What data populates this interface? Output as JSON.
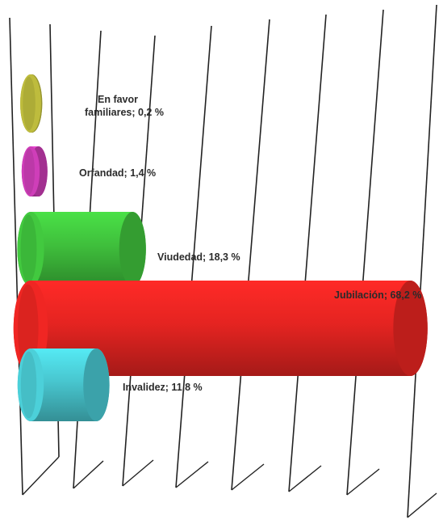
{
  "chart_data": {
    "type": "bar",
    "orientation": "horizontal",
    "style": "3d-cylinder",
    "title": "",
    "xlabel": "",
    "ylabel": "",
    "legend": "none",
    "grid": true,
    "xlim": [
      0,
      80
    ],
    "unit": "%",
    "categories": [
      "En favor familiares",
      "Orfandad",
      "Viudedad",
      "Jubilación",
      "Invalidez"
    ],
    "values": [
      0.2,
      1.4,
      18.3,
      68.2,
      11.8
    ],
    "colors": [
      "#b5b33a",
      "#c53bb0",
      "#3fbf3c",
      "#e52421",
      "#48c6cf"
    ],
    "data_labels": [
      [
        "En favor",
        "familiares; 0,2 %"
      ],
      [
        "Orfandad; 1,4 %"
      ],
      [
        "Viudedad; 18,3 %"
      ],
      [
        "Jubilación; 68,2 %"
      ],
      [
        "Invalidez; 11,8 %"
      ]
    ]
  }
}
